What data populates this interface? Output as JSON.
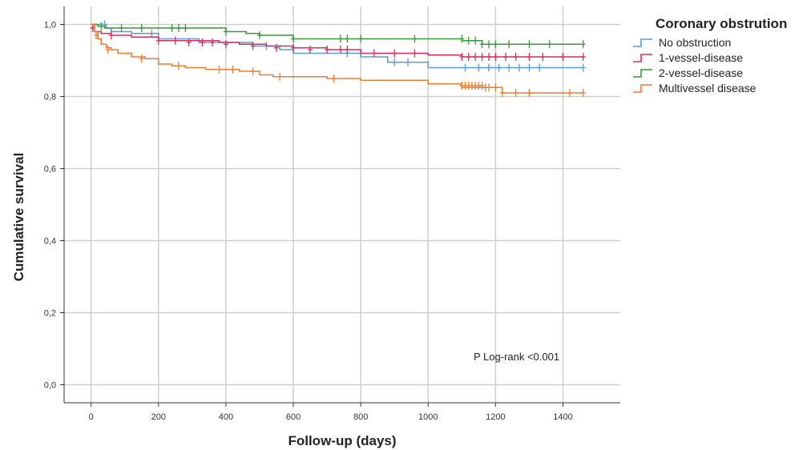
{
  "chart_data": {
    "type": "line",
    "subtype": "kaplan-meier",
    "title": "",
    "xlabel": "Follow-up (days)",
    "ylabel": "Cumulative survival",
    "xlim": [
      -80,
      1570
    ],
    "ylim": [
      -0.05,
      1.05
    ],
    "xticks": [
      0,
      200,
      400,
      600,
      800,
      1000,
      1200,
      1400
    ],
    "yticks": [
      0.0,
      0.2,
      0.4,
      0.6,
      0.8,
      1.0
    ],
    "xtick_labels": [
      "0",
      "200",
      "400",
      "600",
      "800",
      "1000",
      "1200",
      "1400"
    ],
    "ytick_labels": [
      "0,0",
      "0,2",
      "0,4",
      "0,6",
      "0,8",
      "1,0"
    ],
    "grid": true,
    "legend_title": "Coronary obstrution",
    "legend_position": "right",
    "annotation": "P Log-rank <0.001",
    "series": [
      {
        "name": "No obstruction",
        "color": "#5b9bd5",
        "x": [
          0,
          30,
          45,
          60,
          120,
          200,
          320,
          480,
          560,
          600,
          760,
          800,
          880,
          1000,
          1460
        ],
        "y": [
          1.0,
          1.0,
          0.99,
          0.98,
          0.975,
          0.96,
          0.95,
          0.94,
          0.93,
          0.92,
          0.92,
          0.91,
          0.895,
          0.88,
          0.88
        ],
        "censored_x": [
          40,
          180,
          520,
          760,
          900,
          940,
          1110,
          1150,
          1180,
          1210,
          1240,
          1270,
          1300,
          1330,
          1460
        ],
        "censored_y": [
          1.0,
          0.975,
          0.94,
          0.92,
          0.895,
          0.895,
          0.88,
          0.88,
          0.88,
          0.88,
          0.88,
          0.88,
          0.88,
          0.88,
          0.88
        ]
      },
      {
        "name": "1-vessel-disease",
        "color": "#d62e5c",
        "x": [
          0,
          10,
          30,
          60,
          120,
          200,
          380,
          440,
          520,
          600,
          700,
          800,
          1000,
          1100,
          1460
        ],
        "y": [
          0.99,
          0.98,
          0.975,
          0.97,
          0.965,
          0.955,
          0.95,
          0.945,
          0.94,
          0.935,
          0.93,
          0.92,
          0.915,
          0.91,
          0.91
        ],
        "censored_x": [
          5,
          60,
          200,
          250,
          290,
          330,
          360,
          400,
          480,
          550,
          600,
          650,
          700,
          740,
          760,
          840,
          900,
          960,
          1100,
          1120,
          1140,
          1160,
          1180,
          1200,
          1230,
          1260,
          1300,
          1340,
          1400,
          1460
        ],
        "censored_y": [
          0.99,
          0.97,
          0.955,
          0.955,
          0.95,
          0.95,
          0.95,
          0.945,
          0.94,
          0.935,
          0.935,
          0.93,
          0.93,
          0.93,
          0.93,
          0.92,
          0.92,
          0.92,
          0.91,
          0.91,
          0.91,
          0.91,
          0.91,
          0.91,
          0.91,
          0.91,
          0.91,
          0.91,
          0.91,
          0.91
        ]
      },
      {
        "name": "2-vessel-disease",
        "color": "#3c963c",
        "x": [
          0,
          20,
          40,
          400,
          460,
          500,
          600,
          1100,
          1160,
          1460
        ],
        "y": [
          1.0,
          0.995,
          0.99,
          0.98,
          0.975,
          0.97,
          0.96,
          0.955,
          0.945,
          0.945
        ],
        "censored_x": [
          30,
          90,
          150,
          240,
          260,
          280,
          400,
          500,
          600,
          740,
          760,
          800,
          960,
          1100,
          1120,
          1140,
          1160,
          1180,
          1200,
          1240,
          1300,
          1360,
          1460
        ],
        "censored_y": [
          0.995,
          0.99,
          0.99,
          0.99,
          0.99,
          0.99,
          0.98,
          0.97,
          0.96,
          0.96,
          0.96,
          0.96,
          0.96,
          0.96,
          0.955,
          0.955,
          0.945,
          0.945,
          0.945,
          0.945,
          0.945,
          0.945,
          0.945
        ]
      },
      {
        "name": "Multivessel disease",
        "color": "#ed7d31",
        "x": [
          0,
          10,
          20,
          30,
          45,
          60,
          80,
          120,
          160,
          200,
          240,
          280,
          340,
          440,
          500,
          540,
          700,
          800,
          1000,
          1100,
          1220,
          1460
        ],
        "y": [
          1.0,
          0.98,
          0.96,
          0.945,
          0.935,
          0.93,
          0.92,
          0.91,
          0.905,
          0.89,
          0.885,
          0.88,
          0.875,
          0.87,
          0.86,
          0.855,
          0.85,
          0.845,
          0.835,
          0.825,
          0.81,
          0.81
        ],
        "censored_x": [
          15,
          50,
          150,
          260,
          380,
          420,
          480,
          560,
          720,
          1100,
          1110,
          1120,
          1130,
          1140,
          1150,
          1160,
          1170,
          1180,
          1200,
          1220,
          1260,
          1300,
          1420,
          1460
        ],
        "censored_y": [
          0.97,
          0.93,
          0.905,
          0.885,
          0.875,
          0.875,
          0.87,
          0.855,
          0.85,
          0.83,
          0.83,
          0.83,
          0.83,
          0.83,
          0.83,
          0.83,
          0.825,
          0.825,
          0.825,
          0.81,
          0.81,
          0.81,
          0.81,
          0.81
        ]
      }
    ]
  }
}
